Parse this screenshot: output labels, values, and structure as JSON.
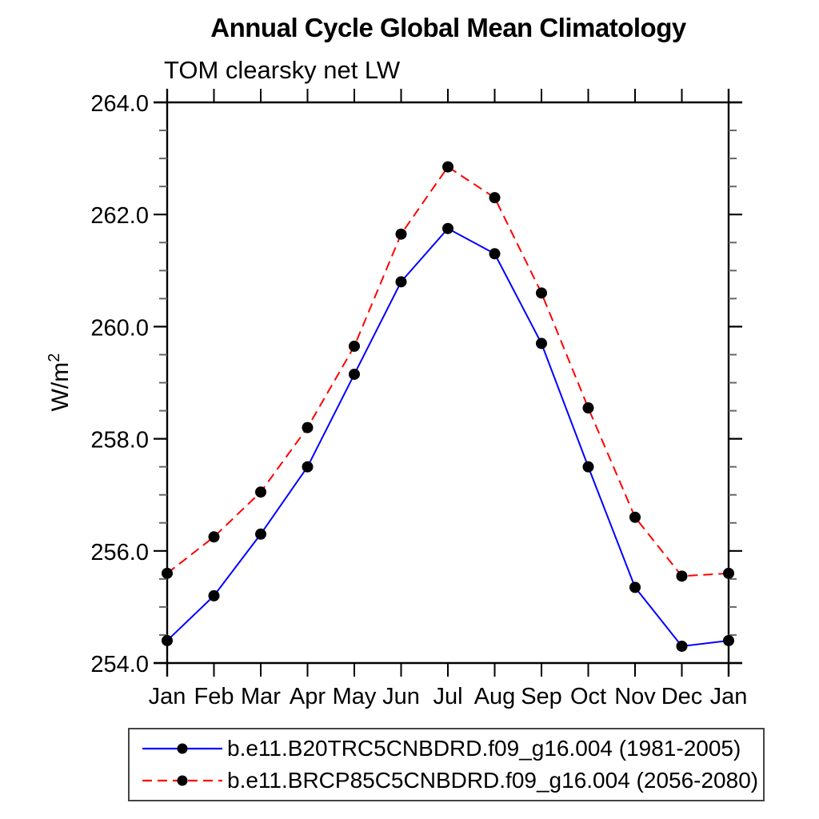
{
  "chart_data": {
    "type": "line",
    "title": "Annual Cycle Global Mean Climatology",
    "subtitle": "TOM clearsky net LW",
    "ylabel": "W/m^2",
    "ylabel_base": "W/m",
    "ylabel_exponent": "2",
    "categories": [
      "Jan",
      "Feb",
      "Mar",
      "Apr",
      "May",
      "Jun",
      "Jul",
      "Aug",
      "Sep",
      "Oct",
      "Nov",
      "Dec",
      "Jan"
    ],
    "ylim": [
      254.0,
      264.0
    ],
    "ytick_major": [
      254.0,
      256.0,
      258.0,
      260.0,
      262.0,
      264.0
    ],
    "ytick_labels": [
      "254.0",
      "256.0",
      "258.0",
      "260.0",
      "262.0",
      "264.0"
    ],
    "ytick_minor_step": 0.5,
    "grid": false,
    "legend_position": "bottom",
    "axis_color": "#000000",
    "minor_tick_color": "#666666",
    "marker_shape": "circle",
    "series": [
      {
        "name": "b.e11.B20TRC5CNBDRD.f09_g16.004 (1981-2005)",
        "color": "#0000ff",
        "line_style": "solid",
        "dash": "none",
        "marker_color": "#000000",
        "values": [
          254.4,
          255.2,
          256.3,
          257.5,
          259.15,
          260.8,
          261.75,
          261.3,
          259.7,
          257.5,
          255.35,
          254.3,
          254.4
        ]
      },
      {
        "name": "b.e11.BRCP85C5CNBDRD.f09_g16.004 (2056-2080)",
        "color": "#ff0000",
        "line_style": "dashed",
        "dash": "12 7",
        "marker_color": "#000000",
        "values": [
          255.6,
          256.25,
          257.05,
          258.2,
          259.65,
          261.65,
          262.85,
          262.3,
          260.6,
          258.55,
          256.6,
          255.55,
          255.6
        ]
      }
    ]
  }
}
